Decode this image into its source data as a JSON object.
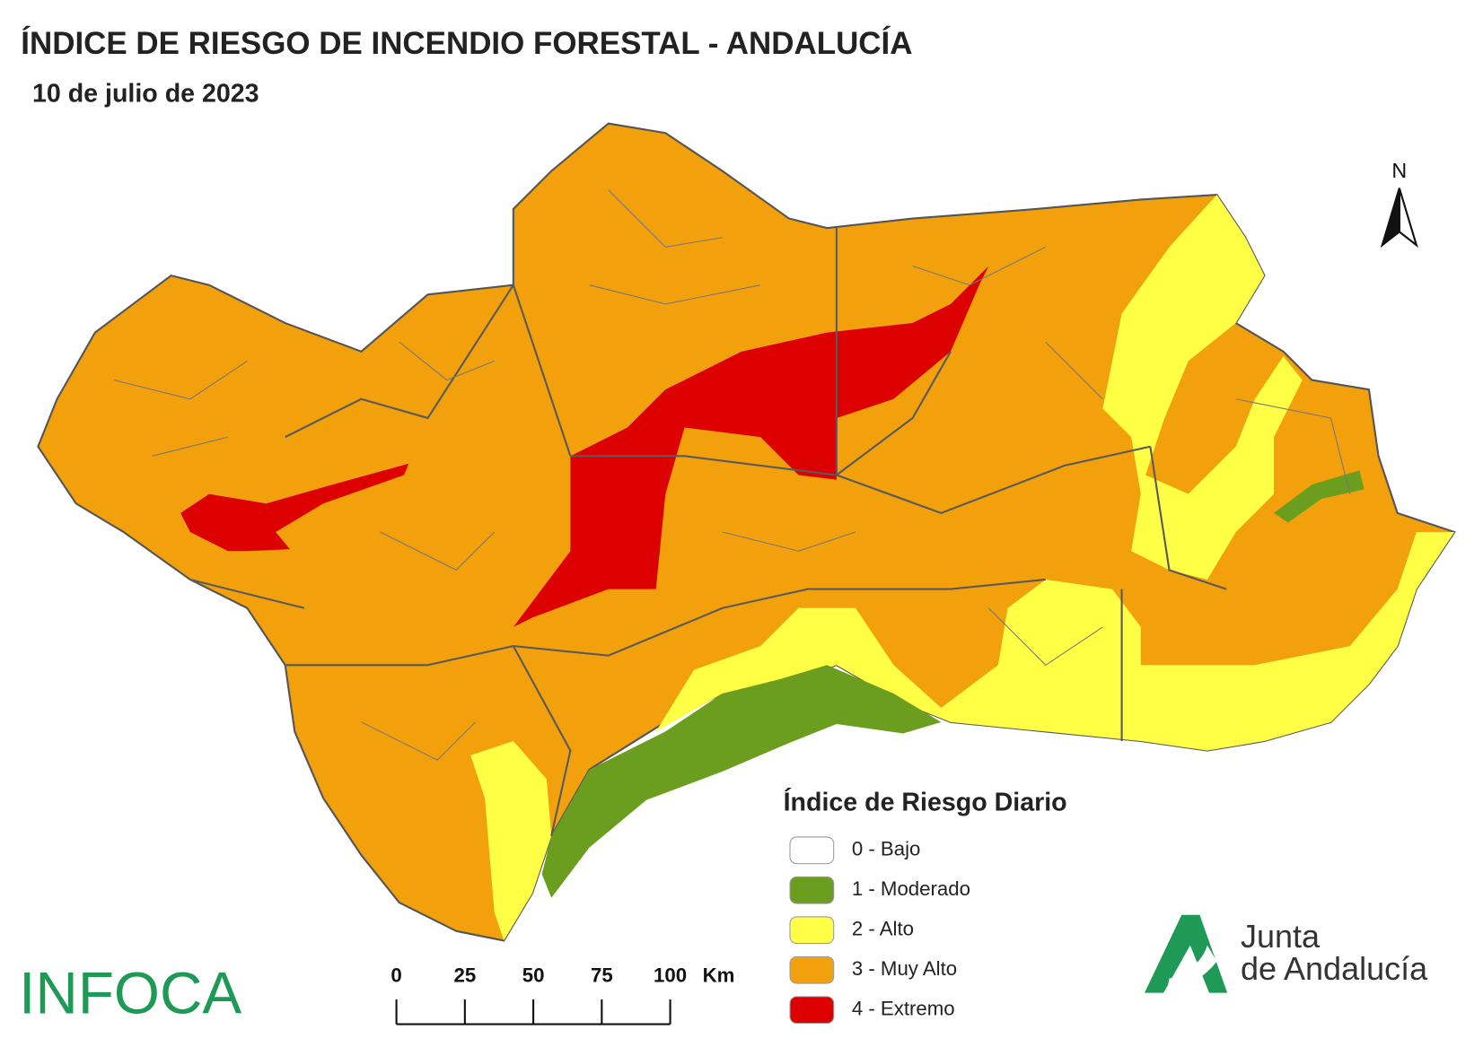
{
  "header": {
    "title": "ÍNDICE DE RIESGO DE INCENDIO FORESTAL - ANDALUCÍA",
    "date": "10 de julio de 2023"
  },
  "legend": {
    "title": "Índice de Riesgo Diario",
    "items": [
      {
        "label": "0 - Bajo",
        "color": "#ffffff"
      },
      {
        "label": "1 - Moderado",
        "color": "#6b9e1f"
      },
      {
        "label": "2 - Alto",
        "color": "#ffff46"
      },
      {
        "label": "3 - Muy Alto",
        "color": "#f2a10c"
      },
      {
        "label": "4 - Extremo",
        "color": "#dd0000"
      }
    ]
  },
  "scale_bar": {
    "ticks": [
      0,
      25,
      50,
      75,
      100
    ],
    "unit": "Km"
  },
  "north": "N",
  "logos": {
    "infoca": "INFOCA",
    "junta_line1": "Junta",
    "junta_line2": "de Andalucía"
  }
}
